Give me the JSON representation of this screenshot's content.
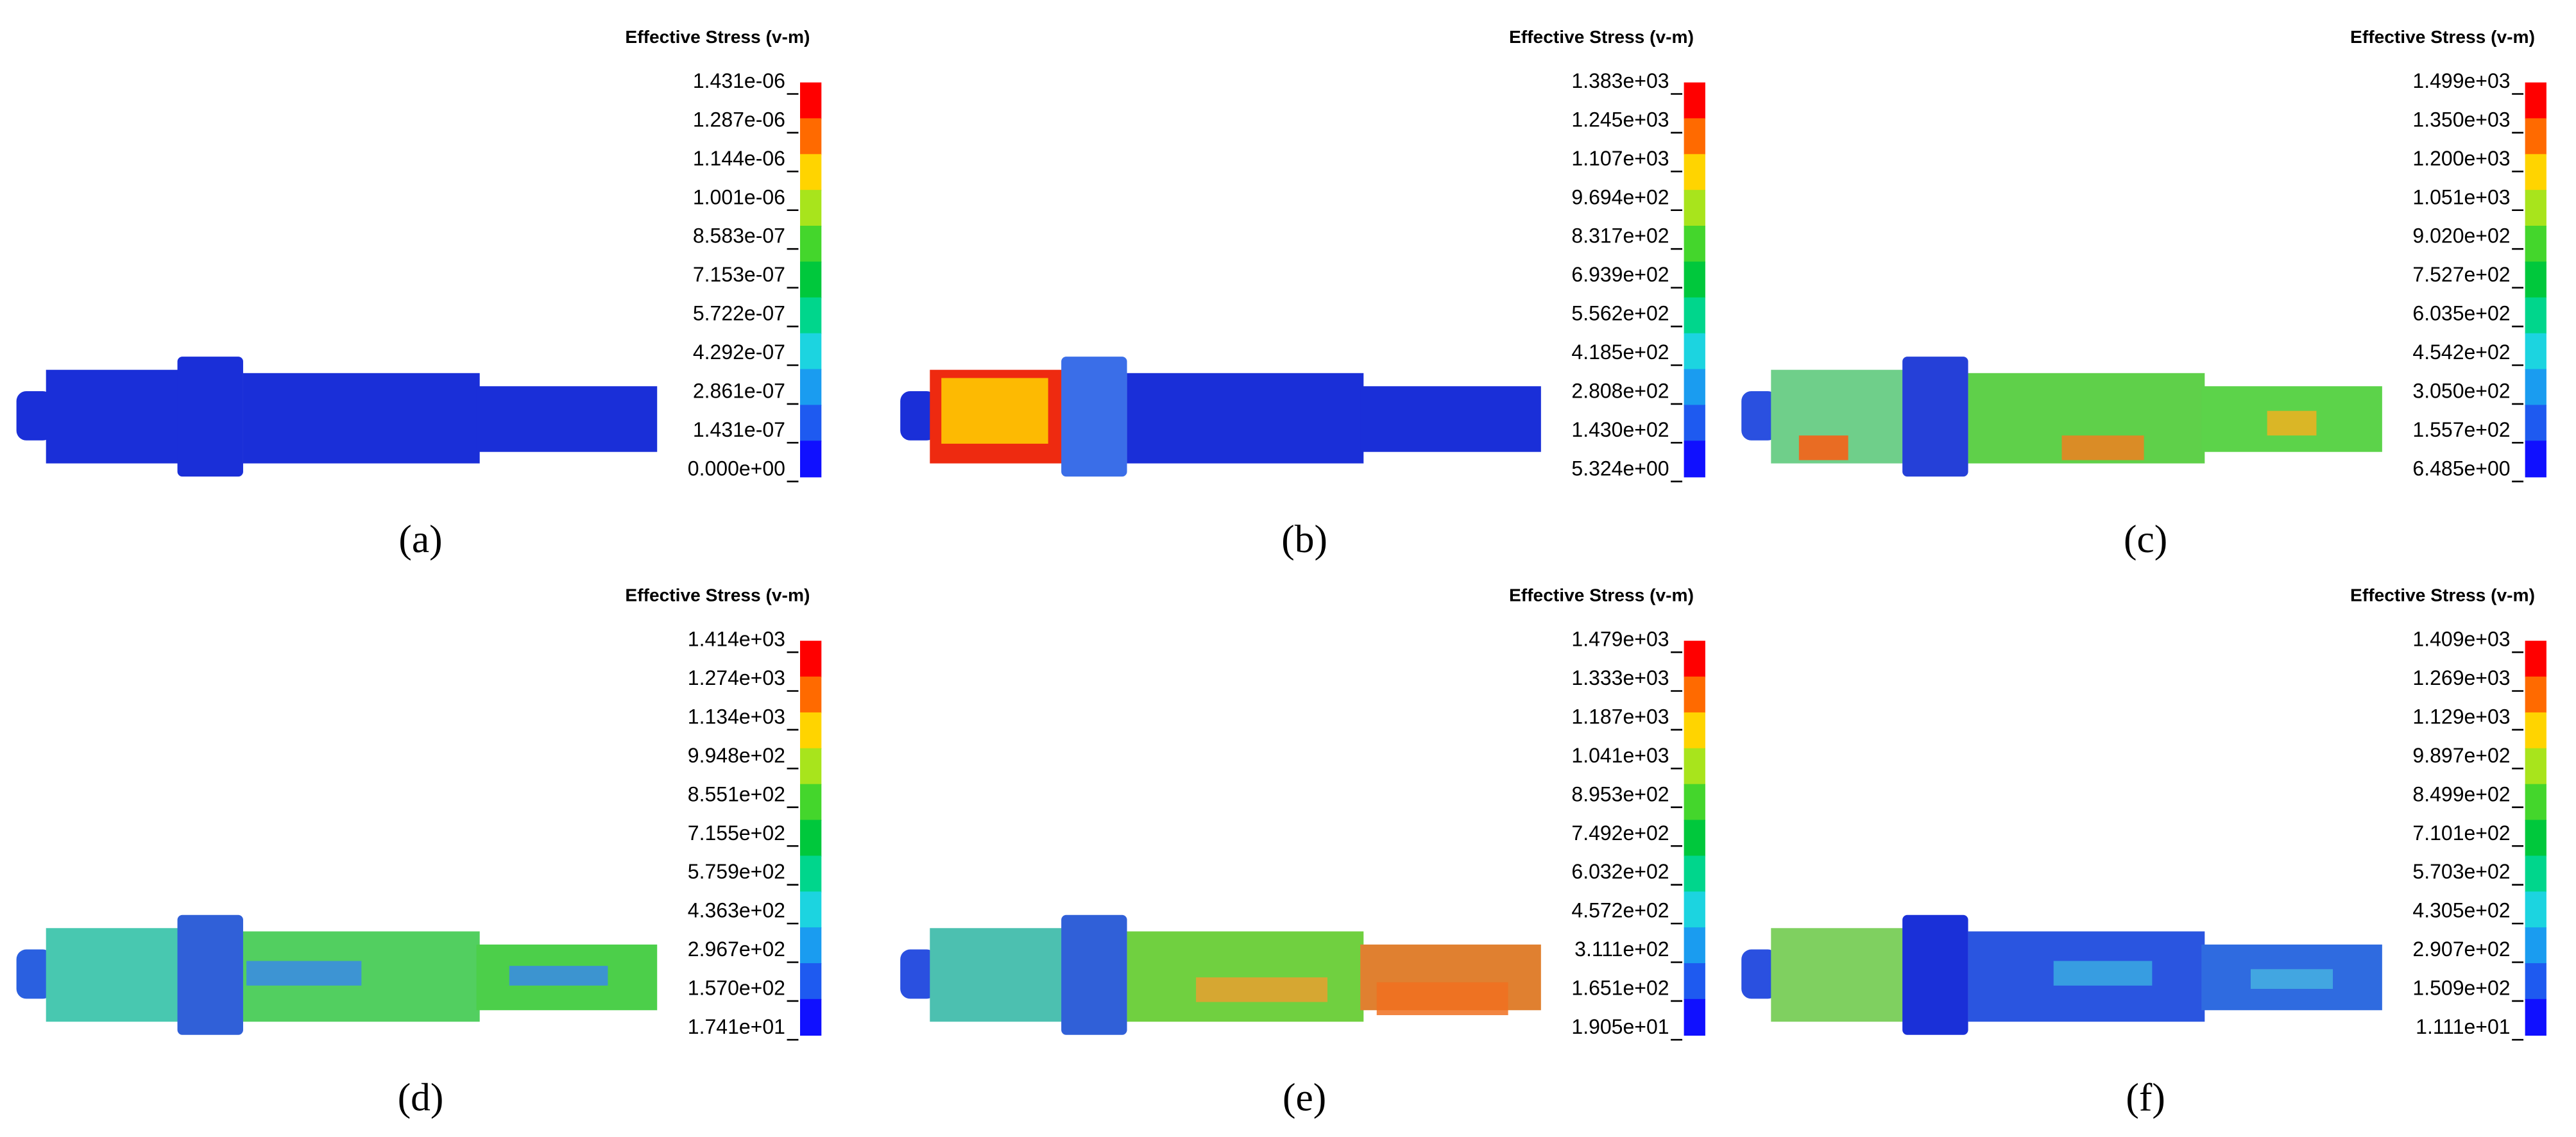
{
  "panels": [
    {
      "label": "(a)",
      "legend_title": "Effective Stress (v-m)",
      "legend_ticks": [
        "1.431e-06",
        "1.287e-06",
        "1.144e-06",
        "1.001e-06",
        "8.583e-07",
        "7.153e-07",
        "5.722e-07",
        "4.292e-07",
        "2.861e-07",
        "1.431e-07",
        "0.000e+00"
      ]
    },
    {
      "label": "(b)",
      "legend_title": "Effective Stress (v-m)",
      "legend_ticks": [
        "1.383e+03",
        "1.245e+03",
        "1.107e+03",
        "9.694e+02",
        "8.317e+02",
        "6.939e+02",
        "5.562e+02",
        "4.185e+02",
        "2.808e+02",
        "1.430e+02",
        "5.324e+00"
      ]
    },
    {
      "label": "(c)",
      "legend_title": "Effective Stress (v-m)",
      "legend_ticks": [
        "1.499e+03",
        "1.350e+03",
        "1.200e+03",
        "1.051e+03",
        "9.020e+02",
        "7.527e+02",
        "6.035e+02",
        "4.542e+02",
        "3.050e+02",
        "1.557e+02",
        "6.485e+00"
      ]
    },
    {
      "label": "(d)",
      "legend_title": "Effective Stress (v-m)",
      "legend_ticks": [
        "1.414e+03",
        "1.274e+03",
        "1.134e+03",
        "9.948e+02",
        "8.551e+02",
        "7.155e+02",
        "5.759e+02",
        "4.363e+02",
        "2.967e+02",
        "1.570e+02",
        "1.741e+01"
      ]
    },
    {
      "label": "(e)",
      "legend_title": "Effective Stress (v-m)",
      "legend_ticks": [
        "1.479e+03",
        "1.333e+03",
        "1.187e+03",
        "1.041e+03",
        "8.953e+02",
        "7.492e+02",
        "6.032e+02",
        "4.572e+02",
        "3.111e+02",
        "1.651e+02",
        "1.905e+01"
      ]
    },
    {
      "label": "(f)",
      "legend_title": "Effective Stress (v-m)",
      "legend_ticks": [
        "1.409e+03",
        "1.269e+03",
        "1.129e+03",
        "9.897e+02",
        "8.499e+02",
        "7.101e+02",
        "5.703e+02",
        "4.305e+02",
        "2.907e+02",
        "1.509e+02",
        "1.111e+01"
      ]
    }
  ]
}
